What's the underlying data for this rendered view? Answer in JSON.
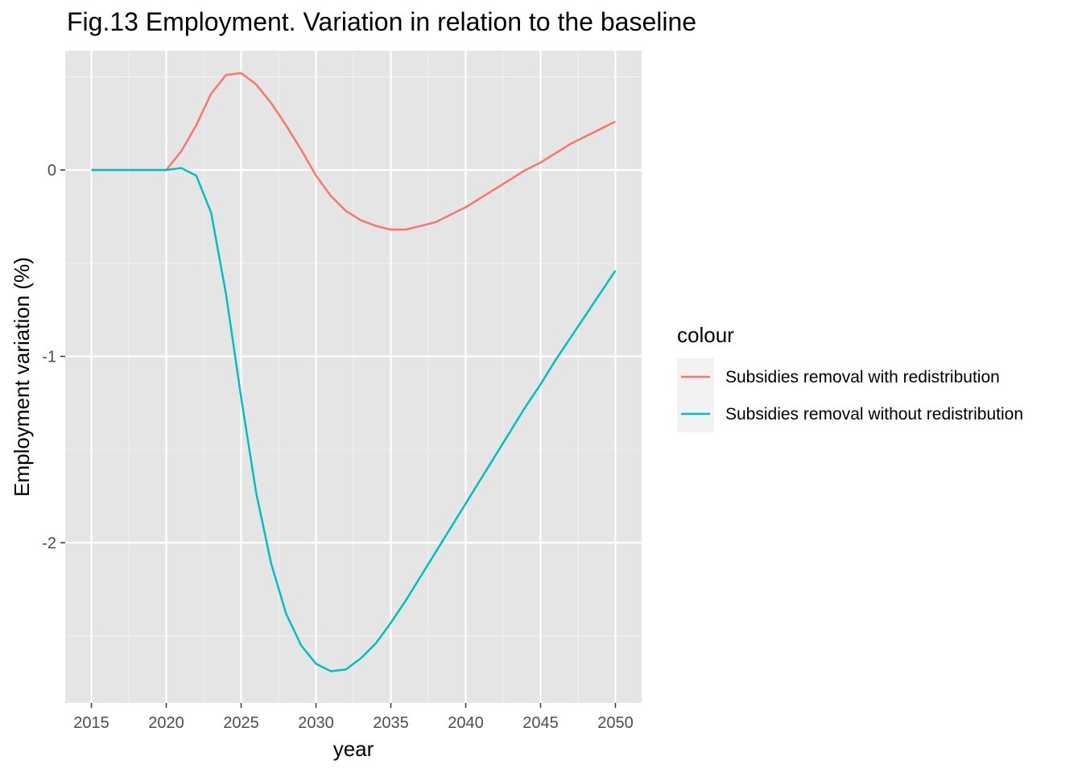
{
  "chart_data": {
    "type": "line",
    "title": "Fig.13 Employment. Variation in relation to the baseline",
    "xlabel": "year",
    "ylabel": "Employment variation (%)",
    "xlim": [
      2013.25,
      2051.75
    ],
    "ylim": [
      -2.86,
      0.64
    ],
    "x_ticks": [
      2015,
      2020,
      2025,
      2030,
      2035,
      2040,
      2045,
      2050
    ],
    "x_tick_labels": [
      "2015",
      "2020",
      "2025",
      "2030",
      "2035",
      "2040",
      "2045",
      "2050"
    ],
    "y_ticks": [
      0,
      -1,
      -2
    ],
    "y_tick_labels": [
      "0",
      "-1",
      "-2"
    ],
    "grid": true,
    "legend": {
      "title": "colour",
      "position": "right"
    },
    "x": [
      2015,
      2016,
      2017,
      2018,
      2019,
      2020,
      2021,
      2022,
      2023,
      2024,
      2025,
      2026,
      2027,
      2028,
      2029,
      2030,
      2031,
      2032,
      2033,
      2034,
      2035,
      2036,
      2037,
      2038,
      2039,
      2040,
      2041,
      2042,
      2043,
      2044,
      2045,
      2046,
      2047,
      2048,
      2049,
      2050
    ],
    "series": [
      {
        "name": "Subsidies removal with redistribution",
        "color": "#F8766D",
        "values": [
          0,
          0,
          0,
          0,
          0,
          0,
          0.1,
          0.24,
          0.41,
          0.51,
          0.52,
          0.46,
          0.36,
          0.24,
          0.11,
          -0.03,
          -0.14,
          -0.22,
          -0.27,
          -0.3,
          -0.32,
          -0.32,
          -0.3,
          -0.28,
          -0.24,
          -0.2,
          -0.15,
          -0.1,
          -0.05,
          0,
          0.04,
          0.09,
          0.14,
          0.18,
          0.22,
          0.26
        ]
      },
      {
        "name": "Subsidies removal without redistribution",
        "color": "#00BFC4",
        "values": [
          0,
          0,
          0,
          0,
          0,
          0,
          0.01,
          -0.03,
          -0.23,
          -0.67,
          -1.22,
          -1.73,
          -2.11,
          -2.38,
          -2.55,
          -2.65,
          -2.69,
          -2.68,
          -2.62,
          -2.54,
          -2.43,
          -2.31,
          -2.18,
          -2.05,
          -1.92,
          -1.79,
          -1.66,
          -1.53,
          -1.4,
          -1.27,
          -1.15,
          -1.02,
          -0.9,
          -0.78,
          -0.66,
          -0.54
        ]
      }
    ]
  },
  "colors": {
    "panel": "#E5E5E5",
    "grid_major": "#FFFFFF",
    "grid_minor": "#F2F2F2"
  }
}
